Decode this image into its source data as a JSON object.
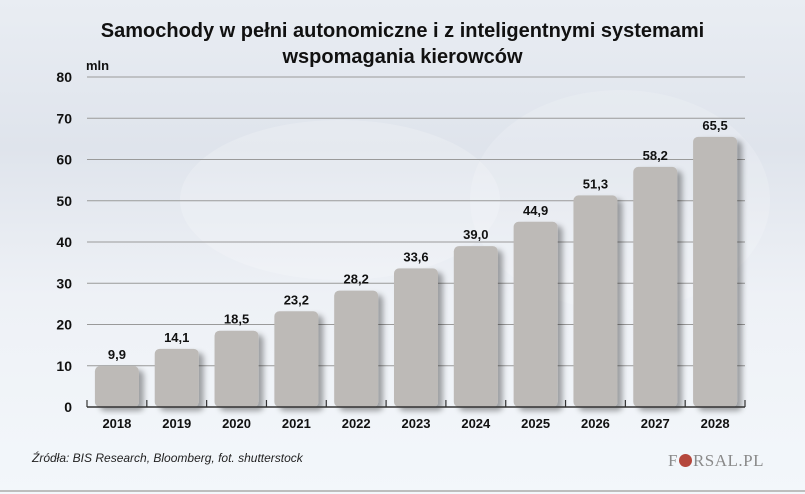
{
  "chart_data": {
    "type": "bar",
    "title": "Samochody w pełni autonomiczne i z inteligentnymi systemami wspomagania kierowców",
    "title_lines": [
      "Samochody w pełni autonomiczne i z inteligentnymi systemami",
      "wspomagania kierowców"
    ],
    "xlabel": "",
    "ylabel": "mln",
    "ylim": [
      0,
      80
    ],
    "yticks": [
      0,
      10,
      20,
      30,
      40,
      50,
      60,
      70,
      80
    ],
    "grid": true,
    "categories": [
      "2018",
      "2019",
      "2020",
      "2021",
      "2022",
      "2023",
      "2024",
      "2025",
      "2026",
      "2027",
      "2028"
    ],
    "values": [
      9.9,
      14.1,
      18.5,
      23.2,
      28.2,
      33.6,
      39.0,
      44.9,
      51.3,
      58.2,
      65.5
    ],
    "value_labels": [
      "9,9",
      "14,1",
      "18,5",
      "23,2",
      "28,2",
      "33,6",
      "39,0",
      "44,9",
      "51,3",
      "58,2",
      "65,5"
    ],
    "bar_color": "#bdbab7"
  },
  "footer": {
    "source": "Źródła:  BIS Research, Bloomberg, fot. shutterstock",
    "logo_prefix": "F",
    "logo_suffix": "RSAL.PL"
  }
}
